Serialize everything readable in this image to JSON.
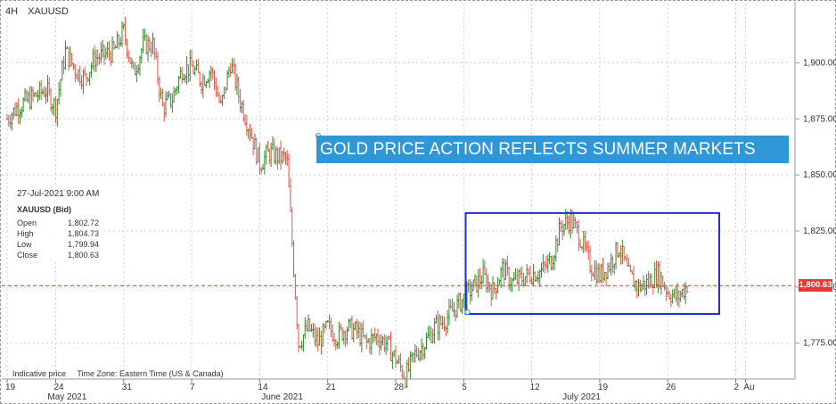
{
  "header": {
    "timeframe": "4H",
    "symbol": "XAUUSD"
  },
  "banner": {
    "text": "GOLD PRICE ACTION REFLECTS SUMMER MARKETS"
  },
  "infobox": {
    "datetime": "27-Jul-2021 9:00 AM",
    "symbol": "XAUUSD (Bid)",
    "rows": [
      {
        "label": "Open",
        "value": "1,802.72"
      },
      {
        "label": "High",
        "value": "1,804.73"
      },
      {
        "label": "Low",
        "value": "1,799.94"
      },
      {
        "label": "Close",
        "value": "1,800.63"
      }
    ]
  },
  "footer": {
    "indicative": "Indicative price",
    "timezone": "Time Zone: Eastern Time (US & Canada)"
  },
  "current_price": {
    "label": "1,800.63",
    "value": 1800.63,
    "color": "#e33b33"
  },
  "colors": {
    "up": "#2e8b2e",
    "down": "#e0554d",
    "box": "#1f2ec9",
    "banner": "#2f97d6"
  },
  "chart_data": {
    "type": "candlestick",
    "ylim": [
      1755,
      1928
    ],
    "y_ticks": [
      {
        "value": 1900,
        "label": "1,900.00"
      },
      {
        "value": 1875,
        "label": "1,875.00"
      },
      {
        "value": 1850,
        "label": "1,850.00"
      },
      {
        "value": 1825,
        "label": "1,825.00"
      },
      {
        "value": 1800,
        "label": "1,800.00"
      },
      {
        "value": 1775,
        "label": "1,775.00"
      }
    ],
    "x_day_labels": [
      {
        "day": 0,
        "label": "19"
      },
      {
        "day": 5,
        "label": "24"
      },
      {
        "day": 12,
        "label": "31"
      },
      {
        "day": 19,
        "label": "7"
      },
      {
        "day": 26,
        "label": "14"
      },
      {
        "day": 33,
        "label": "21"
      },
      {
        "day": 40,
        "label": "28"
      },
      {
        "day": 47,
        "label": "5"
      },
      {
        "day": 54,
        "label": "12"
      },
      {
        "day": 61,
        "label": "19"
      },
      {
        "day": 68,
        "label": "26"
      },
      {
        "day": 75,
        "label": "2"
      },
      {
        "day": 76,
        "label": "Au"
      }
    ],
    "x_month_labels": [
      {
        "day": 6,
        "label": "May 2021"
      },
      {
        "day": 28,
        "label": "June 2021"
      },
      {
        "day": 59,
        "label": "July 2021"
      }
    ],
    "highlight_box": {
      "day_start": 47.2,
      "day_end": 73.3,
      "price_high": 1833,
      "price_low": 1788
    },
    "anchors": [
      [
        0,
        1875
      ],
      [
        1,
        1880
      ],
      [
        2,
        1883
      ],
      [
        4,
        1888
      ],
      [
        5,
        1880
      ],
      [
        6,
        1905
      ],
      [
        7,
        1897
      ],
      [
        8,
        1893
      ],
      [
        9,
        1902
      ],
      [
        11,
        1905
      ],
      [
        12,
        1914
      ],
      [
        13,
        1895
      ],
      [
        14,
        1908
      ],
      [
        15,
        1908
      ],
      [
        16,
        1880
      ],
      [
        17,
        1884
      ],
      [
        18,
        1897
      ],
      [
        19,
        1898
      ],
      [
        20,
        1892
      ],
      [
        21,
        1897
      ],
      [
        22,
        1880
      ],
      [
        23,
        1900
      ],
      [
        24,
        1883
      ],
      [
        25,
        1870
      ],
      [
        26,
        1855
      ],
      [
        27,
        1860
      ],
      [
        28,
        1858
      ],
      [
        28.8,
        1857
      ],
      [
        29.4,
        1815
      ],
      [
        30,
        1775
      ],
      [
        31,
        1782
      ],
      [
        32,
        1775
      ],
      [
        33,
        1782
      ],
      [
        34,
        1778
      ],
      [
        35,
        1782
      ],
      [
        36,
        1780
      ],
      [
        37,
        1775
      ],
      [
        38,
        1778
      ],
      [
        39,
        1775
      ],
      [
        40,
        1768
      ],
      [
        41,
        1760
      ],
      [
        42,
        1770
      ],
      [
        43,
        1775
      ],
      [
        44,
        1782
      ],
      [
        45,
        1785
      ],
      [
        46,
        1790
      ],
      [
        47,
        1795
      ],
      [
        48,
        1800
      ],
      [
        49,
        1805
      ],
      [
        50,
        1798
      ],
      [
        51,
        1808
      ],
      [
        52,
        1802
      ],
      [
        53,
        1804
      ],
      [
        54,
        1806
      ],
      [
        55,
        1807
      ],
      [
        56,
        1812
      ],
      [
        57,
        1827
      ],
      [
        58,
        1830
      ],
      [
        59,
        1822
      ],
      [
        60,
        1810
      ],
      [
        61,
        1805
      ],
      [
        62,
        1810
      ],
      [
        63,
        1818
      ],
      [
        64,
        1805
      ],
      [
        65,
        1800
      ],
      [
        66,
        1802
      ],
      [
        67,
        1806
      ],
      [
        68,
        1798
      ],
      [
        69,
        1795
      ],
      [
        69.7,
        1799
      ],
      [
        70,
        1801
      ]
    ]
  }
}
